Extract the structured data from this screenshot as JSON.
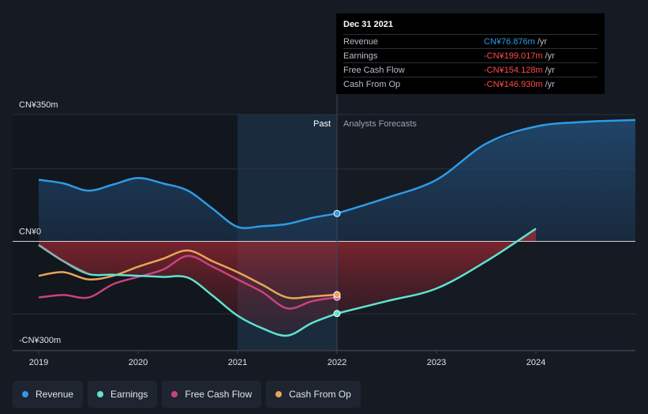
{
  "tooltip": {
    "date": "Dec 31 2021",
    "rows": [
      {
        "label": "Revenue",
        "value": "CN¥76.876m",
        "unit": "/yr",
        "color": "#2e9be6"
      },
      {
        "label": "Earnings",
        "value": "-CN¥199.017m",
        "unit": "/yr",
        "color": "#ff4a4a"
      },
      {
        "label": "Free Cash Flow",
        "value": "-CN¥154.128m",
        "unit": "/yr",
        "color": "#ff4a4a"
      },
      {
        "label": "Cash From Op",
        "value": "-CN¥146.930m",
        "unit": "/yr",
        "color": "#ff4a4a"
      }
    ]
  },
  "legend": [
    {
      "label": "Revenue",
      "color": "#2e9be6"
    },
    {
      "label": "Earnings",
      "color": "#5fe3cf"
    },
    {
      "label": "Free Cash Flow",
      "color": "#c9427f"
    },
    {
      "label": "Cash From Op",
      "color": "#e7a55a"
    }
  ],
  "chart_data": {
    "type": "line",
    "title": "",
    "y_tick_labels": [
      {
        "label": "CN¥350m",
        "value": 350
      },
      {
        "label": "CN¥0",
        "value": 0
      },
      {
        "label": "-CN¥300m",
        "value": -300
      }
    ],
    "ylim": [
      -300,
      350
    ],
    "xlim": [
      2019,
      2025
    ],
    "x_tick_labels": [
      "2019",
      "2020",
      "2021",
      "2022",
      "2023",
      "2024"
    ],
    "x_tick_values": [
      2019,
      2020,
      2021,
      2022,
      2023,
      2024
    ],
    "past_label": "Past",
    "forecast_label": "Analysts Forecasts",
    "divider_x": 2022,
    "highlight_range": [
      2021,
      2022
    ],
    "series": [
      {
        "name": "Revenue",
        "color": "#2e9be6",
        "fill": "#1d3a56",
        "points": [
          [
            2019,
            170
          ],
          [
            2019.25,
            160
          ],
          [
            2019.5,
            140
          ],
          [
            2019.75,
            157
          ],
          [
            2020,
            175
          ],
          [
            2020.25,
            160
          ],
          [
            2020.5,
            140
          ],
          [
            2020.75,
            90
          ],
          [
            2021,
            40
          ],
          [
            2021.25,
            42
          ],
          [
            2021.5,
            48
          ],
          [
            2021.75,
            65
          ],
          [
            2022,
            77
          ],
          [
            2022.5,
            120
          ],
          [
            2023,
            170
          ],
          [
            2023.5,
            270
          ],
          [
            2024,
            317
          ],
          [
            2024.5,
            330
          ],
          [
            2025,
            335
          ]
        ]
      },
      {
        "name": "Earnings",
        "color": "#5fe3cf",
        "fill": null,
        "points": [
          [
            2019,
            -10
          ],
          [
            2019.25,
            -55
          ],
          [
            2019.5,
            -90
          ],
          [
            2019.75,
            -92
          ],
          [
            2020,
            -95
          ],
          [
            2020.25,
            -98
          ],
          [
            2020.5,
            -100
          ],
          [
            2020.75,
            -150
          ],
          [
            2021,
            -205
          ],
          [
            2021.25,
            -240
          ],
          [
            2021.5,
            -260
          ],
          [
            2021.75,
            -225
          ],
          [
            2022,
            -199
          ],
          [
            2022.5,
            -165
          ],
          [
            2023,
            -130
          ],
          [
            2023.5,
            -55
          ],
          [
            2024,
            35
          ]
        ]
      },
      {
        "name": "Free Cash Flow",
        "color": "#c9427f",
        "fill": null,
        "points": [
          [
            2019,
            -155
          ],
          [
            2019.25,
            -148
          ],
          [
            2019.5,
            -155
          ],
          [
            2019.75,
            -118
          ],
          [
            2020,
            -98
          ],
          [
            2020.25,
            -78
          ],
          [
            2020.5,
            -40
          ],
          [
            2020.75,
            -70
          ],
          [
            2021,
            -105
          ],
          [
            2021.25,
            -140
          ],
          [
            2021.5,
            -185
          ],
          [
            2021.75,
            -165
          ],
          [
            2022,
            -154
          ]
        ]
      },
      {
        "name": "Cash From Op",
        "color": "#e7a55a",
        "fill": null,
        "points": [
          [
            2019,
            -95
          ],
          [
            2019.25,
            -85
          ],
          [
            2019.5,
            -105
          ],
          [
            2019.75,
            -95
          ],
          [
            2020,
            -70
          ],
          [
            2020.25,
            -48
          ],
          [
            2020.5,
            -25
          ],
          [
            2020.75,
            -55
          ],
          [
            2021,
            -85
          ],
          [
            2021.25,
            -120
          ],
          [
            2021.5,
            -155
          ],
          [
            2021.75,
            -152
          ],
          [
            2022,
            -147
          ]
        ]
      }
    ]
  }
}
